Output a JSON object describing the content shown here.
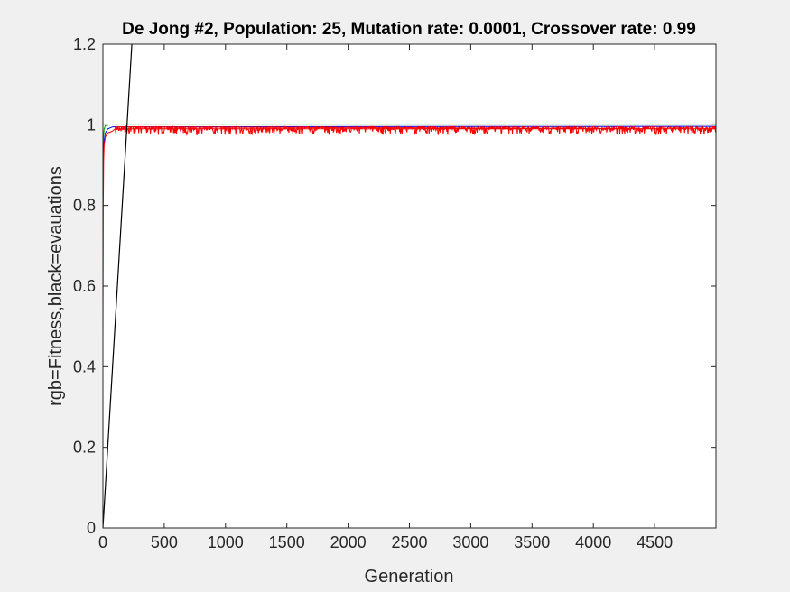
{
  "chart_data": {
    "type": "line",
    "title": "De Jong #2, Population: 25, Mutation rate: 0.0001, Crossover rate: 0.99",
    "xlabel": "Generation",
    "ylabel": "rgb=Fitness,black=evauations",
    "xlim": [
      0,
      5000
    ],
    "ylim": [
      0,
      1.2
    ],
    "xticks": [
      0,
      500,
      1000,
      1500,
      2000,
      2500,
      3000,
      3500,
      4000,
      4500
    ],
    "yticks": [
      0,
      0.2,
      0.4,
      0.6,
      0.8,
      1,
      1.2
    ],
    "xtick_labels": [
      "0",
      "500",
      "1000",
      "1500",
      "2000",
      "2500",
      "3000",
      "3500",
      "4000",
      "4500"
    ],
    "ytick_labels": [
      "0",
      "0.2",
      "0.4",
      "0.6",
      "0.8",
      "1",
      "1.2"
    ],
    "grid": false,
    "series": [
      {
        "color": "#00a000",
        "x": [
          0,
          5,
          10,
          20,
          40,
          60,
          100,
          5000
        ],
        "y": [
          0.88,
          0.97,
          0.99,
          0.998,
          0.999,
          0.9995,
          0.9998,
          0.9998
        ]
      },
      {
        "color": "#0000ff",
        "x": [
          0,
          5,
          10,
          20,
          40,
          80,
          5000
        ],
        "y": [
          0.89,
          0.93,
          0.96,
          0.98,
          0.99,
          0.995,
          0.996
        ]
      },
      {
        "color": "#ff0000",
        "x": [
          0,
          3,
          6,
          10,
          15,
          20,
          30,
          40,
          60,
          80,
          100,
          5000
        ],
        "y": [
          0.47,
          0.8,
          0.91,
          0.95,
          0.96,
          0.97,
          0.975,
          0.98,
          0.982,
          0.985,
          0.99,
          0.99
        ],
        "noise_band": [
          0.975,
          0.995
        ]
      },
      {
        "color": "#000000",
        "x": [
          0,
          240
        ],
        "y": [
          0,
          1.22
        ]
      }
    ]
  }
}
